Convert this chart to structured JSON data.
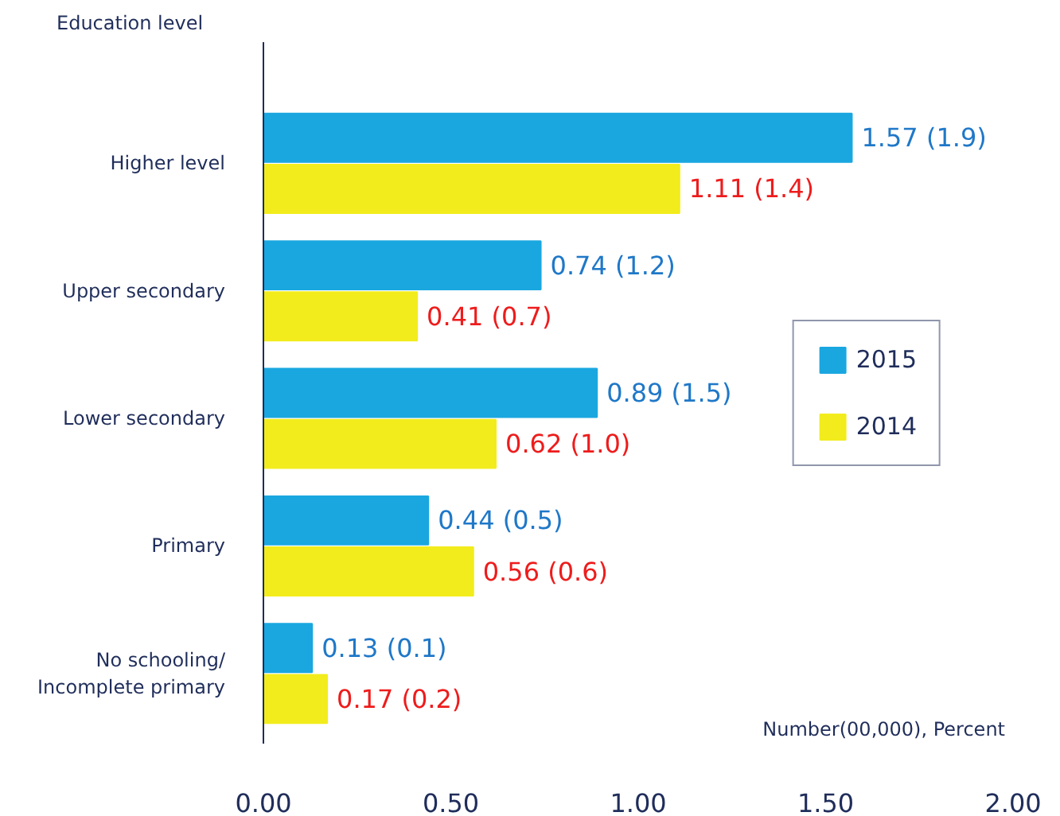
{
  "chart_data": {
    "type": "bar",
    "orientation": "horizontal",
    "ylabel": "Education level",
    "xlabel": "Number(00,000), Percent",
    "categories": [
      "Higher level",
      "Upper secondary",
      "Lower secondary",
      "Primary",
      "No schooling/\nIncomplete primary"
    ],
    "series": [
      {
        "name": "2015",
        "color": "#1aa7e0",
        "values": [
          1.57,
          0.74,
          0.89,
          0.44,
          0.13
        ],
        "value_labels": [
          "1.57 (1.9)",
          "0.74 (1.2)",
          "0.89 (1.5)",
          "0.44 (0.5)",
          "0.13 (0.1)"
        ]
      },
      {
        "name": "2014",
        "color": "#f2ec1c",
        "values": [
          1.11,
          0.41,
          0.62,
          0.56,
          0.17
        ],
        "value_labels": [
          "1.11 (1.4)",
          "0.41 (0.7)",
          "0.62 (1.0)",
          "0.56 (0.6)",
          "0.17 (0.2)"
        ]
      }
    ],
    "xlim": [
      0,
      2
    ],
    "xticks": [
      {
        "value": 0,
        "label": "0.00"
      },
      {
        "value": 0.5,
        "label": "0.50"
      },
      {
        "value": 1,
        "label": "1.00"
      },
      {
        "value": 1.5,
        "label": "1.50"
      },
      {
        "value": 2,
        "label": "2.00"
      }
    ],
    "grid": false,
    "legend": "right"
  }
}
